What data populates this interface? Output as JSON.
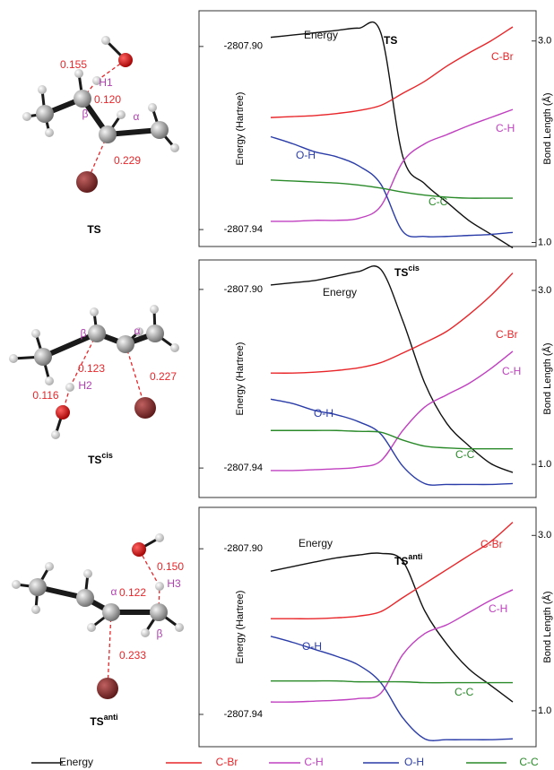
{
  "chart_data": [
    {
      "type": "line",
      "annotation": "TS",
      "y_label": "Energy (Hartree)",
      "y2_label": "Bond Length (Å)",
      "ylim": [
        -2807.8922,
        -2807.9437
      ],
      "yticks": [
        {
          "value": -2807.9,
          "label": "-2807.90"
        },
        {
          "value": -2807.94,
          "label": "-2807.94"
        }
      ],
      "y2lim": [
        3.3,
        0.96
      ],
      "y2ticks": [
        {
          "value": 3,
          "label": "3.0"
        },
        {
          "value": 1,
          "label": "1.0"
        }
      ],
      "series": [
        {
          "name": "Energy",
          "color": "#111111",
          "values": [
            -2807.898,
            -2807.8975,
            -2807.897,
            -2807.8965,
            -2807.896,
            -2807.897,
            -2807.924,
            -2807.93,
            -2807.934,
            -2807.938,
            -2807.941,
            -2807.944
          ]
        },
        {
          "name": "C-Br",
          "color": "#e8262a",
          "axis": "y2",
          "values": [
            2.24,
            2.25,
            2.26,
            2.28,
            2.31,
            2.36,
            2.48,
            2.6,
            2.75,
            2.88,
            3.0,
            3.14
          ]
        },
        {
          "name": "C-H",
          "color": "#c040c0",
          "axis": "y2",
          "values": [
            1.21,
            1.21,
            1.22,
            1.22,
            1.24,
            1.36,
            1.8,
            1.98,
            2.07,
            2.16,
            2.24,
            2.32
          ]
        },
        {
          "name": "O-H",
          "color": "#2a3ca8",
          "axis": "y2",
          "values": [
            2.05,
            1.98,
            1.9,
            1.85,
            1.76,
            1.58,
            1.11,
            1.06,
            1.06,
            1.07,
            1.08,
            1.1
          ]
        },
        {
          "name": "C-C",
          "color": "#2a8a2a",
          "axis": "y2",
          "values": [
            1.62,
            1.61,
            1.6,
            1.59,
            1.57,
            1.54,
            1.5,
            1.47,
            1.45,
            1.44,
            1.44,
            1.44
          ]
        }
      ]
    },
    {
      "type": "line",
      "annotation": "TS",
      "annotation_sup": "cis",
      "y_label": "Energy (Hartree)",
      "y2_label": "Bond Length (Å)",
      "ylim": [
        -2807.8934,
        -2807.9466
      ],
      "yticks": [
        {
          "value": -2807.9,
          "label": "-2807.90"
        },
        {
          "value": -2807.94,
          "label": "-2807.94"
        }
      ],
      "y2lim": [
        3.35,
        0.62
      ],
      "y2ticks": [
        {
          "value": 3,
          "label": "3.0"
        },
        {
          "value": 1,
          "label": "1.0"
        }
      ],
      "series": [
        {
          "name": "Energy",
          "color": "#111111",
          "values": [
            -2807.899,
            -2807.8985,
            -2807.898,
            -2807.897,
            -2807.896,
            -2807.8955,
            -2807.907,
            -2807.921,
            -2807.93,
            -2807.935,
            -2807.939,
            -2807.941
          ]
        },
        {
          "name": "C-Br",
          "color": "#e8262a",
          "axis": "y2",
          "values": [
            2.05,
            2.05,
            2.06,
            2.08,
            2.11,
            2.17,
            2.28,
            2.4,
            2.53,
            2.72,
            2.94,
            3.2
          ]
        },
        {
          "name": "C-H",
          "color": "#c040c0",
          "axis": "y2",
          "values": [
            0.93,
            0.93,
            0.94,
            0.95,
            0.97,
            1.04,
            1.39,
            1.66,
            1.8,
            1.93,
            2.1,
            2.3
          ]
        },
        {
          "name": "O-H",
          "color": "#2a3ca8",
          "axis": "y2",
          "values": [
            1.75,
            1.7,
            1.62,
            1.57,
            1.49,
            1.35,
            0.98,
            0.78,
            0.77,
            0.77,
            0.77,
            0.78
          ]
        },
        {
          "name": "C-C",
          "color": "#2a8a2a",
          "axis": "y2",
          "values": [
            1.39,
            1.39,
            1.39,
            1.39,
            1.38,
            1.37,
            1.28,
            1.21,
            1.19,
            1.18,
            1.18,
            1.18
          ]
        }
      ]
    },
    {
      "type": "line",
      "annotation": "TS",
      "annotation_sup": "anti",
      "y_label": "Energy (Hartree)",
      "y2_label": "Bond Length (Å)",
      "ylim": [
        -2807.89,
        -2807.9478
      ],
      "yticks": [
        {
          "value": -2807.9,
          "label": "-2807.90"
        },
        {
          "value": -2807.94,
          "label": "-2807.94"
        }
      ],
      "y2lim": [
        3.32,
        0.59
      ],
      "y2ticks": [
        {
          "value": 3,
          "label": "3.0"
        },
        {
          "value": 1,
          "label": "1.0"
        }
      ],
      "series": [
        {
          "name": "Energy",
          "color": "#111111",
          "values": [
            -2807.9054,
            -2807.9043,
            -2807.9032,
            -2807.9022,
            -2807.9015,
            -2807.9011,
            -2807.903,
            -2807.915,
            -2807.923,
            -2807.929,
            -2807.933,
            -2807.937
          ]
        },
        {
          "name": "C-Br",
          "color": "#e8262a",
          "axis": "y2",
          "values": [
            2.05,
            2.05,
            2.05,
            2.06,
            2.08,
            2.13,
            2.29,
            2.45,
            2.61,
            2.77,
            2.93,
            3.15
          ]
        },
        {
          "name": "C-H",
          "color": "#c040c0",
          "axis": "y2",
          "values": [
            1.1,
            1.1,
            1.11,
            1.12,
            1.14,
            1.2,
            1.64,
            1.88,
            1.98,
            2.12,
            2.26,
            2.38
          ]
        },
        {
          "name": "O-H",
          "color": "#2a3ca8",
          "axis": "y2",
          "values": [
            1.85,
            1.78,
            1.7,
            1.62,
            1.52,
            1.32,
            0.92,
            0.68,
            0.67,
            0.67,
            0.67,
            0.68
          ]
        },
        {
          "name": "C-C",
          "color": "#2a8a2a",
          "axis": "y2",
          "values": [
            1.34,
            1.34,
            1.34,
            1.34,
            1.33,
            1.33,
            1.33,
            1.32,
            1.32,
            1.32,
            1.32,
            1.32
          ]
        }
      ]
    }
  ],
  "molecules": [
    {
      "name": "TS",
      "labels": [
        "0.155",
        "H1",
        "0.120",
        "β",
        "α",
        "0.229"
      ]
    },
    {
      "name": "TS",
      "name_sup": "cis",
      "labels": [
        "0.123",
        "β",
        "α",
        "0.116",
        "H2",
        "0.227"
      ]
    },
    {
      "name": "TS",
      "name_sup": "anti",
      "labels": [
        "0.150",
        "H3",
        "0.122",
        "α",
        "β",
        "0.233"
      ]
    }
  ]
}
